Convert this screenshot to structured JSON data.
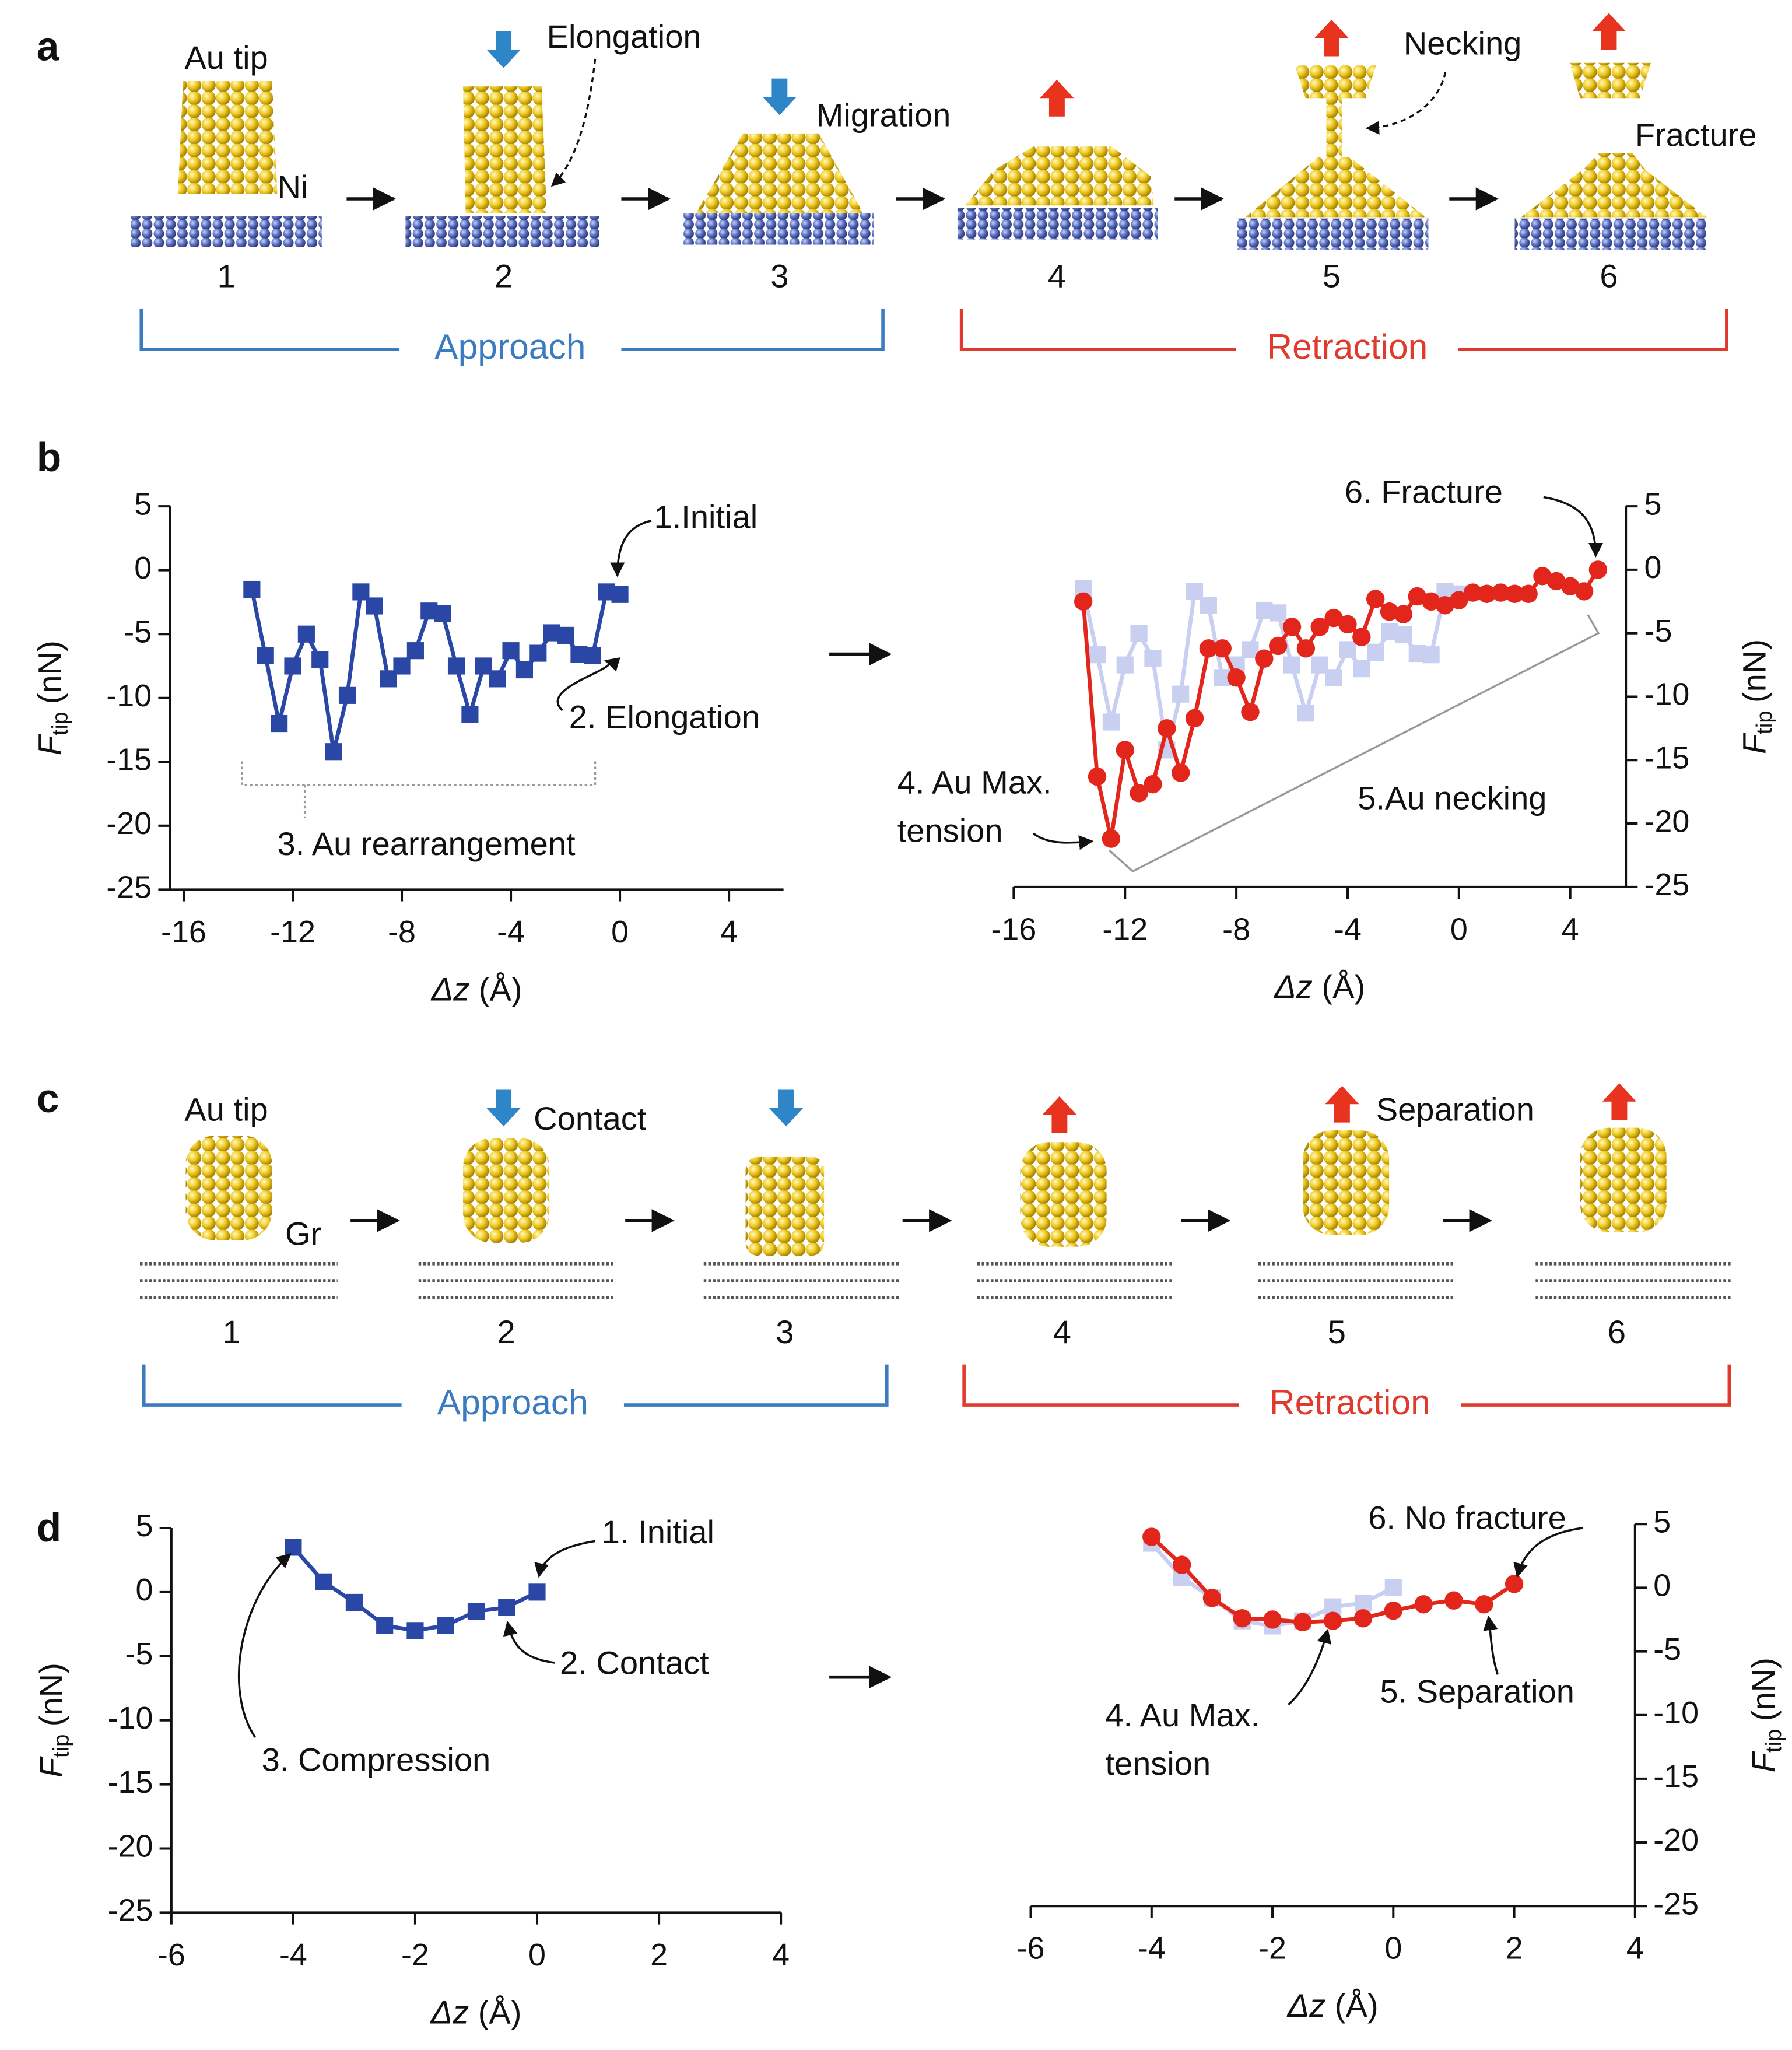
{
  "diagram_a": {
    "label": "a",
    "tip_label": "Au tip",
    "substrate_label": "Ni",
    "annotations": [
      "Elongation",
      "Migration",
      "Necking",
      "Fracture"
    ],
    "steps": [
      "1",
      "2",
      "3",
      "4",
      "5",
      "6"
    ],
    "phases": [
      "Approach",
      "Retraction"
    ]
  },
  "diagram_c": {
    "label": "c",
    "tip_label": "Au tip",
    "substrate_label": "Gr",
    "annotations": [
      "Contact",
      "Separation"
    ],
    "steps": [
      "1",
      "2",
      "3",
      "4",
      "5",
      "6"
    ],
    "phases": [
      "Approach",
      "Retraction"
    ]
  },
  "chart_data": [
    {
      "type": "line",
      "panel_label": "b",
      "y_axis_side": "left",
      "xlabel": [
        "Δz",
        "(Å)"
      ],
      "ylabel": [
        "F",
        "tip",
        "(nN)"
      ],
      "xlim": [
        -16.5,
        6
      ],
      "xticks": [
        -16,
        -12,
        -8,
        -4,
        0,
        4
      ],
      "ylim": [
        -25,
        5
      ],
      "yticks": [
        5,
        0,
        -5,
        -10,
        -15,
        -20,
        -25
      ],
      "annotations": [
        "1.Initial",
        "2. Elongation",
        "3. Au rearrangement"
      ],
      "series": [
        {
          "color": "#2b47a6",
          "marker": "square",
          "x": [
            -13.5,
            -13,
            -12.5,
            -12,
            -11.5,
            -11,
            -10.5,
            -10,
            -9.5,
            -9,
            -8.5,
            -8,
            -7.5,
            -7,
            -6.5,
            -6,
            -5.5,
            -5,
            -4.5,
            -4,
            -3.5,
            -3,
            -2.5,
            -2,
            -1.5,
            -1,
            -0.5,
            0
          ],
          "values": [
            -1.5,
            -6.7,
            -12,
            -7.5,
            -5,
            -7,
            -14.2,
            -9.8,
            -1.7,
            -2.8,
            -8.5,
            -7.5,
            -6.3,
            -3.2,
            -3.4,
            -7.5,
            -11.3,
            -7.5,
            -8.5,
            -6.3,
            -7.8,
            -6.5,
            -4.9,
            -5.1,
            -6.6,
            -6.7,
            -1.7,
            -1.9
          ]
        }
      ]
    },
    {
      "type": "line",
      "y_axis_side": "right",
      "xlabel": [
        "Δz",
        "(Å)"
      ],
      "ylabel": [
        "F",
        "tip",
        "(nN)"
      ],
      "xlim": [
        -16,
        6
      ],
      "xticks": [
        -16,
        -12,
        -8,
        -4,
        0,
        4
      ],
      "ylim": [
        -25,
        5
      ],
      "yticks": [
        5,
        0,
        -5,
        -10,
        -15,
        -20,
        -25
      ],
      "annotations": [
        "6. Fracture",
        "4. Au Max.",
        "tension",
        "5.Au necking"
      ],
      "series": [
        {
          "color": "#c9cff0",
          "marker": "square",
          "x": [
            -13.5,
            -13,
            -12.5,
            -12,
            -11.5,
            -11,
            -10.5,
            -10,
            -9.5,
            -9,
            -8.5,
            -8,
            -7.5,
            -7,
            -6.5,
            -6,
            -5.5,
            -5,
            -4.5,
            -4,
            -3.5,
            -3,
            -2.5,
            -2,
            -1.5,
            -1,
            -0.5,
            0
          ],
          "values": [
            -1.5,
            -6.7,
            -12,
            -7.5,
            -5,
            -7,
            -14.2,
            -9.8,
            -1.7,
            -2.8,
            -8.5,
            -7.5,
            -6.3,
            -3.2,
            -3.4,
            -7.5,
            -11.3,
            -7.5,
            -8.5,
            -6.3,
            -7.8,
            -6.5,
            -4.9,
            -5.1,
            -6.6,
            -6.7,
            -1.7,
            -1.9
          ]
        },
        {
          "color": "#e3261c",
          "marker": "circle",
          "x": [
            -13.5,
            -13,
            -12.5,
            -12,
            -11.5,
            -11,
            -10.5,
            -10,
            -9.5,
            -9,
            -8.5,
            -8,
            -7.5,
            -7,
            -6.5,
            -6,
            -5.5,
            -5,
            -4.5,
            -4,
            -3.5,
            -3,
            -2.5,
            -2,
            -1.5,
            -1,
            -0.5,
            0,
            0.5,
            1,
            1.5,
            2,
            2.5,
            3,
            3.5,
            4,
            4.5,
            5
          ],
          "values": [
            -2.5,
            -16.3,
            -21.2,
            -14.2,
            -17.6,
            -16.9,
            -12.5,
            -16,
            -11.7,
            -6.2,
            -6.2,
            -8.5,
            -11.2,
            -7,
            -6,
            -4.5,
            -6.2,
            -4.5,
            -3.8,
            -4.3,
            -5.3,
            -2.3,
            -3.3,
            -3.5,
            -2.1,
            -2.5,
            -2.8,
            -2.4,
            -1.8,
            -1.9,
            -1.8,
            -1.9,
            -1.9,
            -0.5,
            -0.9,
            -1.3,
            -1.7,
            0
          ]
        }
      ]
    },
    {
      "type": "line",
      "panel_label": "d",
      "y_axis_side": "left",
      "xlabel": [
        "Δz",
        "(Å)"
      ],
      "ylabel": [
        "F",
        "tip",
        "(nN)"
      ],
      "xlim": [
        -6,
        4
      ],
      "xticks": [
        -6,
        -4,
        -2,
        0,
        2,
        4
      ],
      "ylim": [
        -25,
        5
      ],
      "yticks": [
        5,
        0,
        -5,
        -10,
        -15,
        -20,
        -25
      ],
      "annotations": [
        "1. Initial",
        "2. Contact",
        "3. Compression"
      ],
      "series": [
        {
          "color": "#2b47a6",
          "marker": "square",
          "x": [
            -4,
            -3.5,
            -3,
            -2.5,
            -2,
            -1.5,
            -1,
            -0.5,
            0
          ],
          "values": [
            3.5,
            0.8,
            -0.8,
            -2.6,
            -3,
            -2.6,
            -1.5,
            -1.2,
            0
          ]
        }
      ]
    },
    {
      "type": "line",
      "y_axis_side": "right",
      "xlabel": [
        "Δz",
        "(Å)"
      ],
      "ylabel": [
        "F",
        "tip",
        "(nN)"
      ],
      "xlim": [
        -6,
        4
      ],
      "xticks": [
        -6,
        -4,
        -2,
        0,
        2,
        4
      ],
      "ylim": [
        -25,
        5
      ],
      "yticks": [
        5,
        0,
        -5,
        -10,
        -15,
        -20,
        -25
      ],
      "annotations": [
        "6. No fracture",
        "4. Au Max.",
        "tension",
        "5. Separation"
      ],
      "series": [
        {
          "color": "#c9cff0",
          "marker": "square",
          "x": [
            -4,
            -3.5,
            -3,
            -2.5,
            -2,
            -1.5,
            -1,
            -0.5,
            0
          ],
          "values": [
            3.5,
            0.8,
            -0.8,
            -2.6,
            -3,
            -2.6,
            -1.5,
            -1.2,
            0
          ]
        },
        {
          "color": "#e3261c",
          "marker": "circle",
          "x": [
            -4,
            -3.5,
            -3,
            -2.5,
            -2,
            -1.5,
            -1,
            -0.5,
            0,
            0.5,
            1,
            1.5,
            2
          ],
          "values": [
            4,
            1.8,
            -0.8,
            -2.4,
            -2.5,
            -2.7,
            -2.6,
            -2.4,
            -1.8,
            -1.3,
            -1,
            -1.3,
            0.3
          ]
        }
      ]
    }
  ]
}
